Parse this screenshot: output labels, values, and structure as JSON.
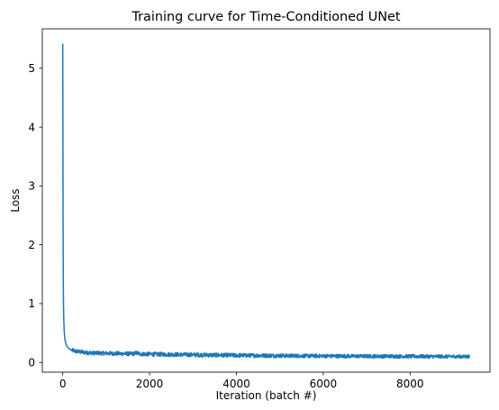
{
  "chart_data": {
    "type": "line",
    "title": "Training curve for Time-Conditioned UNet",
    "xlabel": "Iteration (batch #)",
    "ylabel": "Loss",
    "xlim": [
      -470,
      9840
    ],
    "ylim": [
      -0.165,
      5.67
    ],
    "x_ticks": [
      0,
      2000,
      4000,
      6000,
      8000
    ],
    "x_tick_labels": [
      "0",
      "2000",
      "4000",
      "6000",
      "8000"
    ],
    "y_ticks": [
      0,
      1,
      2,
      3,
      4,
      5
    ],
    "y_tick_labels": [
      "0",
      "1",
      "2",
      "3",
      "4",
      "5"
    ],
    "grid": false,
    "legend": "none",
    "series": [
      {
        "color": "#1f77b4",
        "x": [
          0,
          2,
          5,
          8,
          12,
          18,
          25,
          35,
          50,
          70,
          100,
          150,
          200,
          300,
          400,
          500,
          700,
          1000,
          1300,
          1600,
          1700,
          1800,
          2000,
          2500,
          3000,
          3500,
          4000,
          4500,
          5000,
          5500,
          6000,
          6500,
          7000,
          7500,
          8000,
          8500,
          9000,
          9370
        ],
        "y": [
          5.42,
          4.8,
          3.6,
          2.4,
          1.5,
          0.95,
          0.7,
          0.52,
          0.4,
          0.32,
          0.27,
          0.23,
          0.21,
          0.19,
          0.18,
          0.17,
          0.16,
          0.155,
          0.15,
          0.145,
          0.16,
          0.145,
          0.14,
          0.135,
          0.13,
          0.125,
          0.12,
          0.118,
          0.115,
          0.112,
          0.11,
          0.108,
          0.106,
          0.105,
          0.104,
          0.102,
          0.1,
          0.1
        ],
        "noise_band": 0.035
      }
    ]
  }
}
